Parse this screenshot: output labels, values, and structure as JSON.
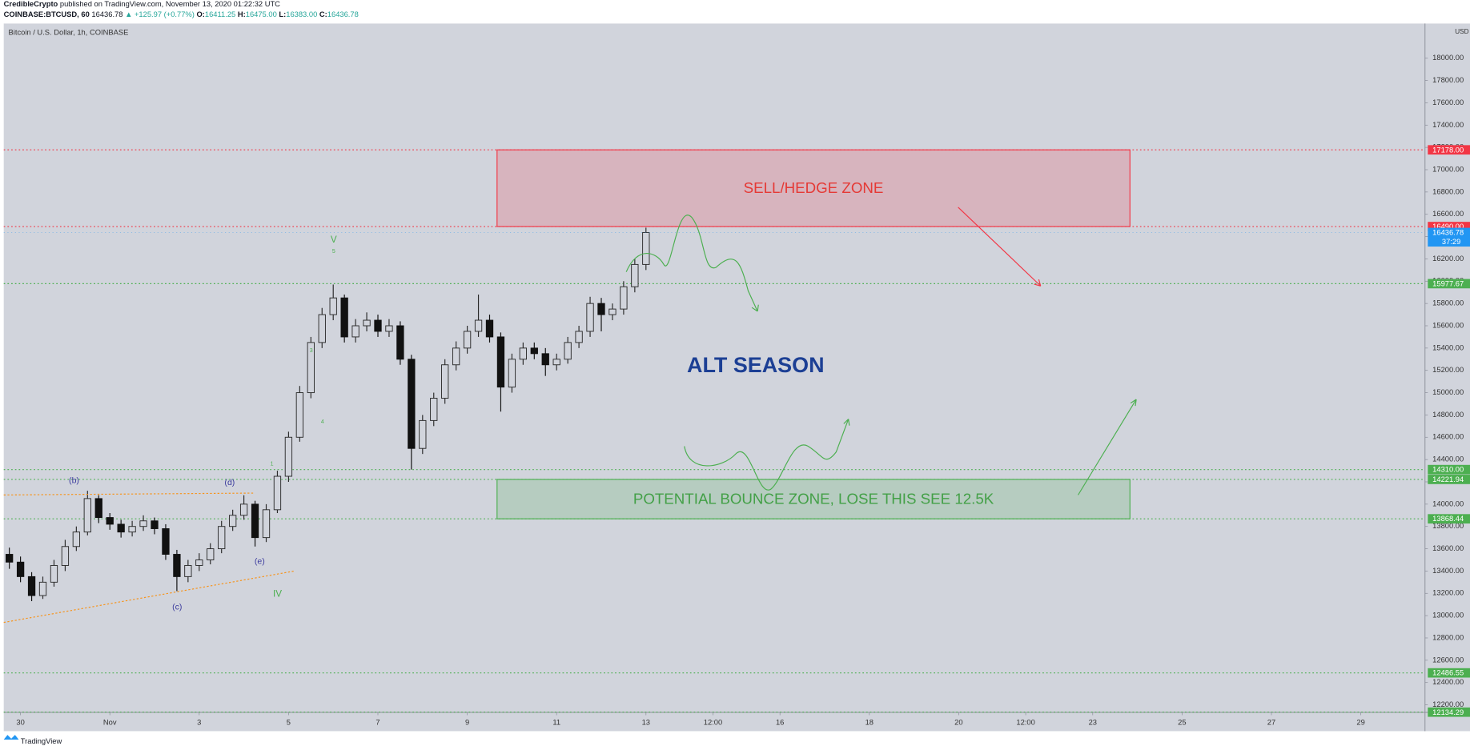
{
  "header": {
    "publisher": "CredibleCrypto",
    "published": "published on TradingView.com, November 13, 2020 01:22:32 UTC",
    "symbol": "COINBASE:BTCUSD, 60",
    "last": "16436.78",
    "change": "▲ +125.97 (+0.77%)",
    "ohlc": [
      {
        "key": "O:",
        "value": "16411.25"
      },
      {
        "key": "H:",
        "value": "16475.00"
      },
      {
        "key": "L:",
        "value": "16383.00"
      },
      {
        "key": "C:",
        "value": "16436.78"
      }
    ]
  },
  "chart_data": {
    "type": "candlestick",
    "title": "Bitcoin / U.S. Dollar, 1h, COINBASE",
    "currency": "USD",
    "up_color": "#2b2b2b",
    "down_color": "#111111",
    "x": [
      "2020-10-29T18:00",
      "2020-10-30T00:00",
      "2020-10-30T06:00",
      "2020-10-30T12:00",
      "2020-10-30T18:00",
      "2020-10-31T00:00",
      "2020-10-31T06:00",
      "2020-10-31T12:00",
      "2020-10-31T18:00",
      "2020-11-01T00:00",
      "2020-11-01T06:00",
      "2020-11-01T12:00",
      "2020-11-01T18:00",
      "2020-11-02T00:00",
      "2020-11-02T06:00",
      "2020-11-02T12:00",
      "2020-11-02T18:00",
      "2020-11-03T00:00",
      "2020-11-03T06:00",
      "2020-11-03T12:00",
      "2020-11-03T18:00",
      "2020-11-04T00:00",
      "2020-11-04T06:00",
      "2020-11-04T12:00",
      "2020-11-04T18:00",
      "2020-11-05T00:00",
      "2020-11-05T06:00",
      "2020-11-05T12:00",
      "2020-11-05T18:00",
      "2020-11-06T00:00",
      "2020-11-06T06:00",
      "2020-11-06T12:00",
      "2020-11-06T18:00",
      "2020-11-07T00:00",
      "2020-11-07T06:00",
      "2020-11-07T12:00",
      "2020-11-07T18:00",
      "2020-11-08T00:00",
      "2020-11-08T06:00",
      "2020-11-08T12:00",
      "2020-11-08T18:00",
      "2020-11-09T00:00",
      "2020-11-09T06:00",
      "2020-11-09T12:00",
      "2020-11-09T18:00",
      "2020-11-10T00:00",
      "2020-11-10T06:00",
      "2020-11-10T12:00",
      "2020-11-10T18:00",
      "2020-11-11T00:00",
      "2020-11-11T06:00",
      "2020-11-11T12:00",
      "2020-11-11T18:00",
      "2020-11-12T00:00",
      "2020-11-12T06:00",
      "2020-11-12T12:00",
      "2020-11-12T18:00",
      "2020-11-13T00:00"
    ],
    "open": [
      13550,
      13480,
      13350,
      13180,
      13300,
      13450,
      13620,
      13750,
      14050,
      13880,
      13820,
      13750,
      13800,
      13850,
      13780,
      13550,
      13350,
      13450,
      13500,
      13600,
      13800,
      13900,
      14000,
      13700,
      13950,
      14250,
      14600,
      15000,
      15450,
      15700,
      15850,
      15500,
      15600,
      15650,
      15550,
      15600,
      15300,
      14500,
      14750,
      14950,
      15250,
      15400,
      15550,
      15650,
      15500,
      15050,
      15300,
      15400,
      15350,
      15250,
      15300,
      15450,
      15550,
      15800,
      15700,
      15750,
      15950,
      16150
    ],
    "high": [
      13610,
      13530,
      13390,
      13350,
      13500,
      13680,
      13800,
      14120,
      14080,
      13920,
      13860,
      13850,
      13900,
      13880,
      13820,
      13590,
      13500,
      13560,
      13650,
      13850,
      13950,
      14080,
      14030,
      14000,
      14300,
      14650,
      15060,
      15500,
      15760,
      15970,
      15880,
      15660,
      15720,
      15700,
      15660,
      15640,
      15340,
      14800,
      15000,
      15300,
      15460,
      15600,
      15880,
      15700,
      15540,
      15350,
      15450,
      15450,
      15400,
      15350,
      15500,
      15600,
      15860,
      15850,
      15800,
      16000,
      16200,
      16480
    ],
    "low": [
      13420,
      13300,
      13130,
      13150,
      13260,
      13400,
      13580,
      13720,
      13830,
      13770,
      13700,
      13710,
      13760,
      13730,
      13500,
      13220,
      13300,
      13400,
      13460,
      13560,
      13760,
      13860,
      13620,
      13660,
      13920,
      14200,
      14560,
      14950,
      15400,
      15650,
      15450,
      15450,
      15550,
      15500,
      15500,
      15250,
      14310,
      14450,
      14700,
      14900,
      15200,
      15350,
      15500,
      15450,
      14830,
      15000,
      15250,
      15300,
      15150,
      15200,
      15260,
      15400,
      15500,
      15550,
      15650,
      15700,
      15900,
      16100
    ],
    "close": [
      13480,
      13350,
      13180,
      13300,
      13450,
      13620,
      13750,
      14050,
      13880,
      13820,
      13750,
      13800,
      13850,
      13780,
      13550,
      13350,
      13450,
      13500,
      13600,
      13800,
      13900,
      14000,
      13700,
      13950,
      14250,
      14600,
      15000,
      15450,
      15700,
      15850,
      15500,
      15600,
      15650,
      15550,
      15600,
      15300,
      14500,
      14750,
      14950,
      15250,
      15400,
      15550,
      15650,
      15500,
      15050,
      15300,
      15400,
      15350,
      15250,
      15300,
      15450,
      15550,
      15800,
      15700,
      15750,
      15950,
      16150,
      16436.78
    ],
    "xlim": [
      "2020-10-29T15:00",
      "2020-11-30T10:30"
    ],
    "xticks": [
      {
        "value": "2020-10-30",
        "label": "30"
      },
      {
        "value": "2020-11-01",
        "label": "Nov"
      },
      {
        "value": "2020-11-03",
        "label": "3"
      },
      {
        "value": "2020-11-05",
        "label": "5"
      },
      {
        "value": "2020-11-07",
        "label": "7"
      },
      {
        "value": "2020-11-09",
        "label": "9"
      },
      {
        "value": "2020-11-11",
        "label": "11"
      },
      {
        "value": "2020-11-13",
        "label": "13"
      },
      {
        "value": "2020-11-14T12:00",
        "label": "12:00"
      },
      {
        "value": "2020-11-16",
        "label": "16"
      },
      {
        "value": "2020-11-18",
        "label": "18"
      },
      {
        "value": "2020-11-20",
        "label": "20"
      },
      {
        "value": "2020-11-21T12:00",
        "label": "12:00"
      },
      {
        "value": "2020-11-23",
        "label": "23"
      },
      {
        "value": "2020-11-25",
        "label": "25"
      },
      {
        "value": "2020-11-27",
        "label": "27"
      },
      {
        "value": "2020-11-29",
        "label": "29"
      }
    ],
    "ylim": [
      12132,
      18311
    ],
    "yticks": [
      {
        "value": 12200,
        "label": "12200.00"
      },
      {
        "value": 12400,
        "label": "12400.00"
      },
      {
        "value": 12600,
        "label": "12600.00"
      },
      {
        "value": 12800,
        "label": "12800.00"
      },
      {
        "value": 13000,
        "label": "13000.00"
      },
      {
        "value": 13200,
        "label": "13200.00"
      },
      {
        "value": 13400,
        "label": "13400.00"
      },
      {
        "value": 13600,
        "label": "13600.00"
      },
      {
        "value": 13800,
        "label": "13800.00"
      },
      {
        "value": 14000,
        "label": "14000.00"
      },
      {
        "value": 14200,
        "label": "14200.00"
      },
      {
        "value": 14400,
        "label": "14400.00"
      },
      {
        "value": 14600,
        "label": "14600.00"
      },
      {
        "value": 14800,
        "label": "14800.00"
      },
      {
        "value": 15000,
        "label": "15000.00"
      },
      {
        "value": 15200,
        "label": "15200.00"
      },
      {
        "value": 15400,
        "label": "15400.00"
      },
      {
        "value": 15600,
        "label": "15600.00"
      },
      {
        "value": 15800,
        "label": "15800.00"
      },
      {
        "value": 16000,
        "label": "16000.00"
      },
      {
        "value": 16200,
        "label": "16200.00"
      },
      {
        "value": 16400,
        "label": "16400.00"
      },
      {
        "value": 16600,
        "label": "16600.00"
      },
      {
        "value": 16800,
        "label": "16800.00"
      },
      {
        "value": 17000,
        "label": "17000.00"
      },
      {
        "value": 17200,
        "label": "17200.00"
      },
      {
        "value": 17400,
        "label": "17400.00"
      },
      {
        "value": 17600,
        "label": "17600.00"
      },
      {
        "value": 17800,
        "label": "17800.00"
      },
      {
        "value": 18000,
        "label": "18000.00"
      }
    ],
    "grid": false,
    "levels": [
      {
        "value": 17178,
        "label": "17178.00",
        "color": "#f23645"
      },
      {
        "value": 16490,
        "label": "16490.00",
        "color": "#f23645"
      },
      {
        "value": 15977.67,
        "label": "15977.67",
        "color": "#4caf50"
      },
      {
        "value": 14310,
        "label": "14310.00",
        "color": "#4caf50"
      },
      {
        "value": 14221.94,
        "label": "14221.94",
        "color": "#4caf50"
      },
      {
        "value": 13868.44,
        "label": "13868.44",
        "color": "#4caf50"
      },
      {
        "value": 12486.55,
        "label": "12486.55",
        "color": "#4caf50"
      },
      {
        "value": 12134.29,
        "label": "12134.29",
        "color": "#4caf50"
      }
    ],
    "last_price": {
      "value": 16436.78,
      "label": "16436.78",
      "countdown": "37:29",
      "color": "#2196f3"
    },
    "zones": [
      {
        "label": "SELL/HEDGE ZONE",
        "low": 16490,
        "high": 17178,
        "start": "2020-11-09T16:00",
        "end": "2020-11-23T20:00",
        "color": "#f23645",
        "text_color": "#e53935"
      },
      {
        "label": "POTENTIAL BOUNCE ZONE, LOSE THIS SEE 12.5K",
        "low": 13868.44,
        "high": 14221.94,
        "start": "2020-11-09T16:00",
        "end": "2020-11-23T20:00",
        "color": "#4caf50",
        "text_color": "#43a047"
      }
    ],
    "annotations": [
      "ALT SEASON",
      "(b)",
      "(c)",
      "(d)",
      "(e)",
      "IV",
      "V",
      "5",
      "3",
      "4",
      "1"
    ]
  },
  "footer": "TradingView"
}
